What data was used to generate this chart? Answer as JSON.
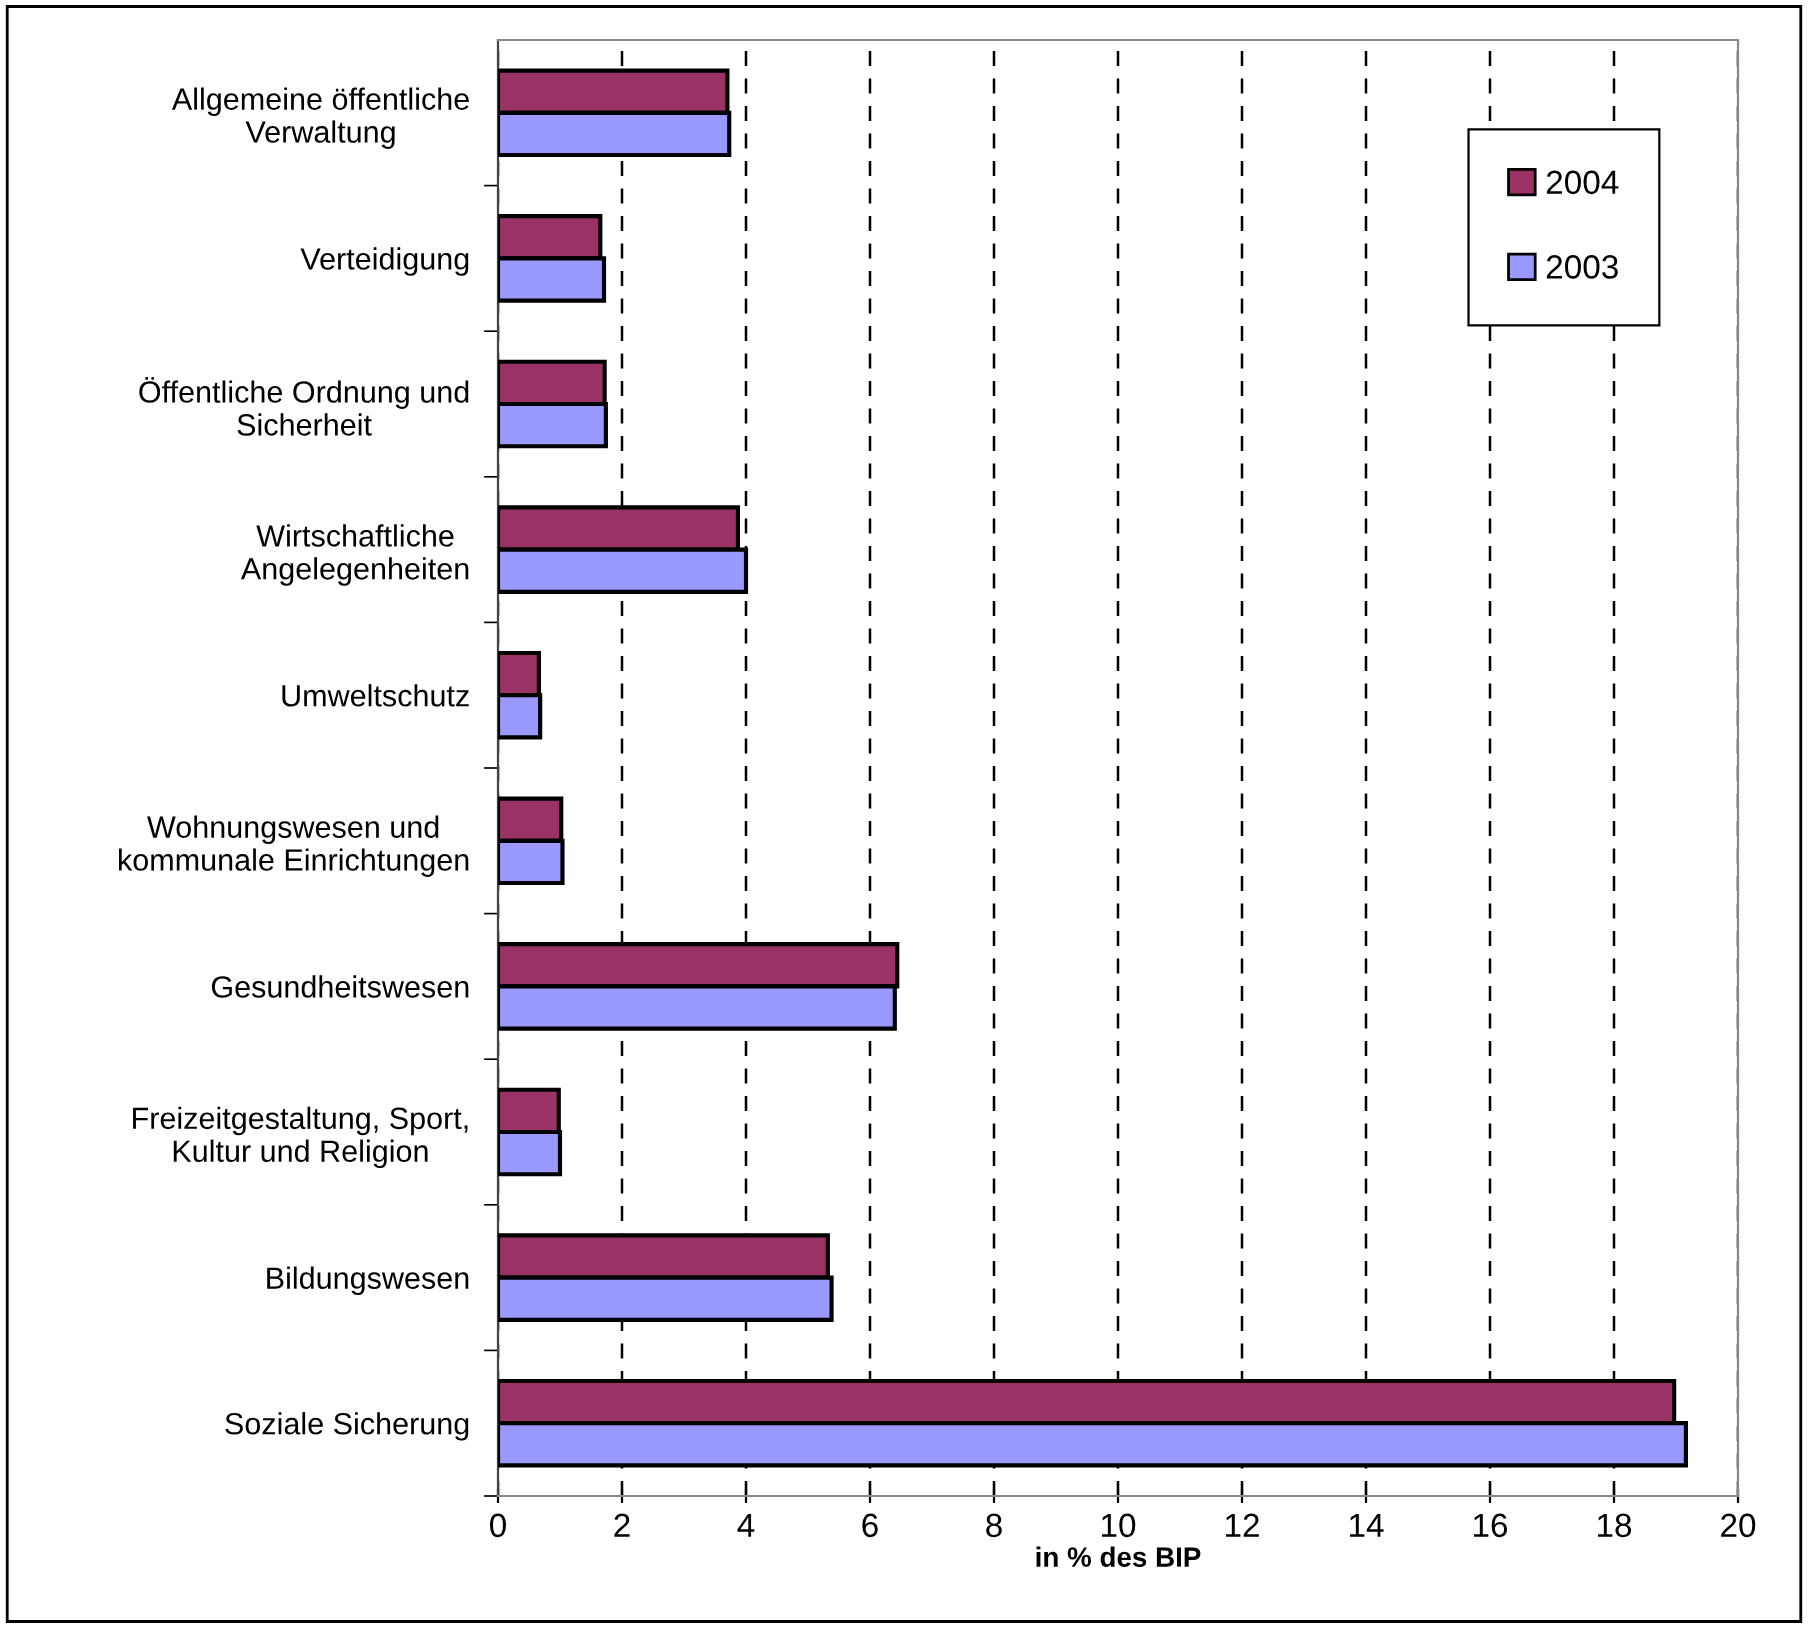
{
  "chart_data": {
    "type": "bar",
    "orientation": "horizontal",
    "xlabel": "in % des BIP",
    "categories": [
      "Allgemeine öffentliche\nVerwaltung",
      "Verteidigung",
      "Öffentliche Ordnung und\nSicherheit",
      "Wirtschaftliche\nAngelegenheiten",
      "Umweltschutz",
      "Wohnungswesen und\nkommunale Einrichtungen",
      "Gesundheitswesen",
      "Freizeitgestaltung, Sport,\nKultur und Religion",
      "Bildungswesen",
      "Soziale Sicherung"
    ],
    "series": [
      {
        "name": "2004",
        "color": "#993366",
        "values": [
          3.7,
          1.65,
          1.72,
          3.87,
          0.66,
          1.02,
          6.44,
          0.98,
          5.32,
          18.97
        ]
      },
      {
        "name": "2003",
        "color": "#9999ff",
        "values": [
          3.73,
          1.71,
          1.74,
          4.0,
          0.68,
          1.04,
          6.4,
          1.0,
          5.38,
          19.16
        ]
      }
    ],
    "xlim": [
      0,
      20
    ],
    "xticks": [
      0,
      2,
      4,
      6,
      8,
      10,
      12,
      14,
      16,
      18,
      20
    ],
    "grid": "x",
    "legend": "top right"
  }
}
